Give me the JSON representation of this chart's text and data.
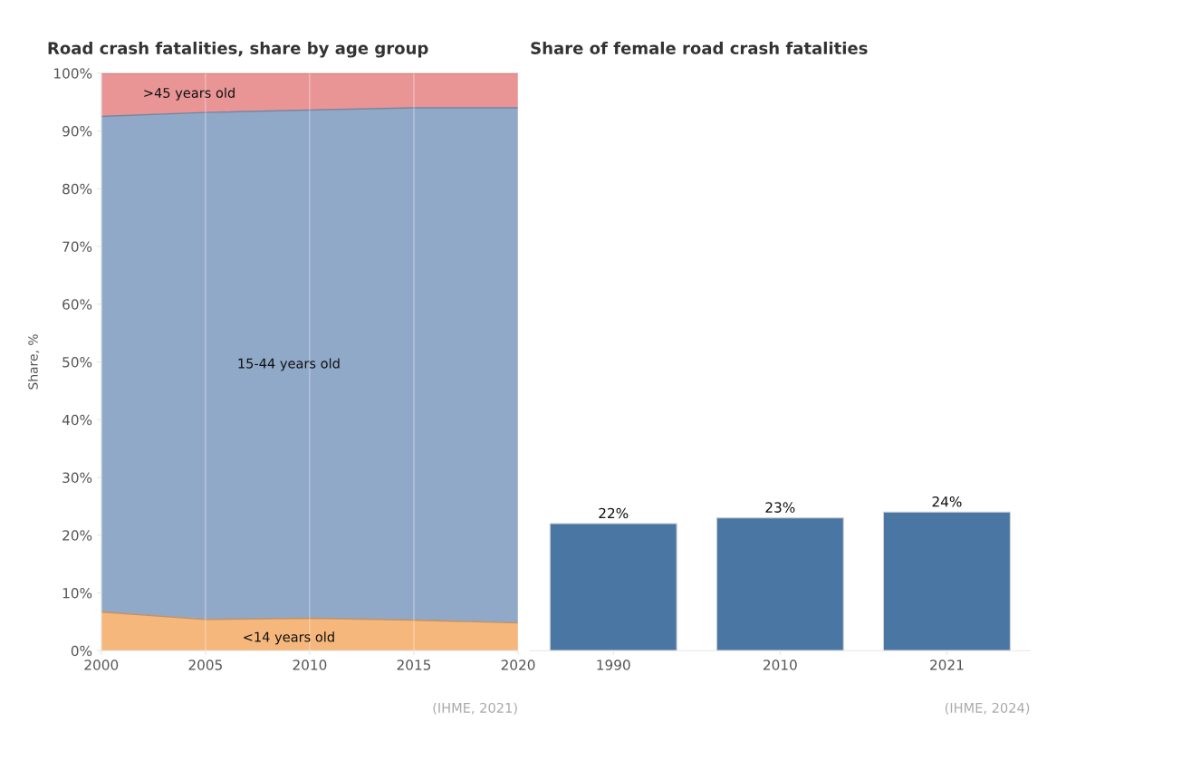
{
  "chart_data": [
    {
      "type": "area",
      "stacked": true,
      "title": "Road crash fatalities, share by age group",
      "ylabel": "Share, %",
      "x": [
        2000,
        2005,
        2010,
        2015,
        2020
      ],
      "series": [
        {
          "name": "<14 years old",
          "color": "#f5b77b",
          "values": [
            6.7,
            5.4,
            5.6,
            5.3,
            4.8
          ]
        },
        {
          "name": "15-44 years old",
          "color": "#91a9c8",
          "values": [
            85.8,
            87.8,
            88.0,
            88.7,
            89.2
          ]
        },
        {
          "name": ">45 years old",
          "color": "#e99596",
          "values": [
            7.5,
            6.8,
            6.4,
            6.0,
            6.0
          ]
        }
      ],
      "xlim": [
        2000,
        2020
      ],
      "xticks": [
        2000,
        2005,
        2010,
        2015,
        2020
      ],
      "ylim": [
        0,
        100
      ],
      "yticks": [
        {
          "value": 0,
          "label": "0%"
        },
        {
          "value": 10,
          "label": "10%"
        },
        {
          "value": 20,
          "label": "20%"
        },
        {
          "value": 30,
          "label": "30%"
        },
        {
          "value": 40,
          "label": "40%"
        },
        {
          "value": 50,
          "label": "50%"
        },
        {
          "value": 60,
          "label": "60%"
        },
        {
          "value": 70,
          "label": "70%"
        },
        {
          "value": 80,
          "label": "80%"
        },
        {
          "value": 90,
          "label": "90%"
        },
        {
          "value": 100,
          "label": "100%"
        }
      ],
      "grid": "x",
      "legend": false,
      "annotations": [
        "(IHME, 2021)"
      ]
    },
    {
      "type": "bar",
      "title": "Share of female road crash fatalities",
      "categories": [
        "1990",
        "2010",
        "2021"
      ],
      "values": [
        22,
        23,
        24
      ],
      "color": "#4a76a4",
      "value_labels": [
        "22%",
        "23%",
        "24%"
      ],
      "ylim": [
        0,
        100
      ],
      "tick_labels": "x",
      "legend": false,
      "annotations": [
        "(IHME, 2024)"
      ]
    }
  ]
}
